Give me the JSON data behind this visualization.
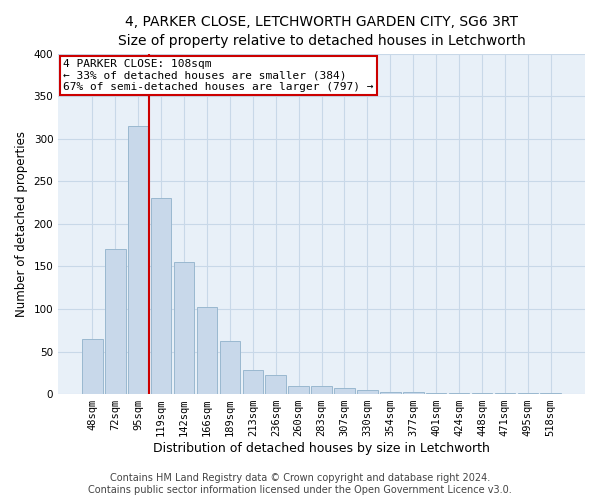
{
  "title_line1": "4, PARKER CLOSE, LETCHWORTH GARDEN CITY, SG6 3RT",
  "title_line2": "Size of property relative to detached houses in Letchworth",
  "xlabel": "Distribution of detached houses by size in Letchworth",
  "ylabel": "Number of detached properties",
  "bar_color": "#c8d8ea",
  "bar_edge_color": "#9ab8d0",
  "categories": [
    "48sqm",
    "72sqm",
    "95sqm",
    "119sqm",
    "142sqm",
    "166sqm",
    "189sqm",
    "213sqm",
    "236sqm",
    "260sqm",
    "283sqm",
    "307sqm",
    "330sqm",
    "354sqm",
    "377sqm",
    "401sqm",
    "424sqm",
    "448sqm",
    "471sqm",
    "495sqm",
    "518sqm"
  ],
  "values": [
    65,
    170,
    315,
    230,
    155,
    102,
    62,
    28,
    22,
    10,
    10,
    7,
    5,
    3,
    2,
    1,
    1,
    1,
    1,
    1,
    1
  ],
  "vline_color": "#cc0000",
  "annotation_text": "4 PARKER CLOSE: 108sqm\n← 33% of detached houses are smaller (384)\n67% of semi-detached houses are larger (797) →",
  "annotation_box_color": "#ffffff",
  "annotation_box_edge": "#cc0000",
  "ylim": [
    0,
    400
  ],
  "yticks": [
    0,
    50,
    100,
    150,
    200,
    250,
    300,
    350,
    400
  ],
  "grid_color": "#c8d8e8",
  "bg_color": "#e8f0f8",
  "footer_line1": "Contains HM Land Registry data © Crown copyright and database right 2024.",
  "footer_line2": "Contains public sector information licensed under the Open Government Licence v3.0.",
  "title_fontsize": 10,
  "subtitle_fontsize": 9,
  "axis_label_fontsize": 8.5,
  "tick_fontsize": 7.5,
  "annotation_fontsize": 8,
  "footer_fontsize": 7
}
